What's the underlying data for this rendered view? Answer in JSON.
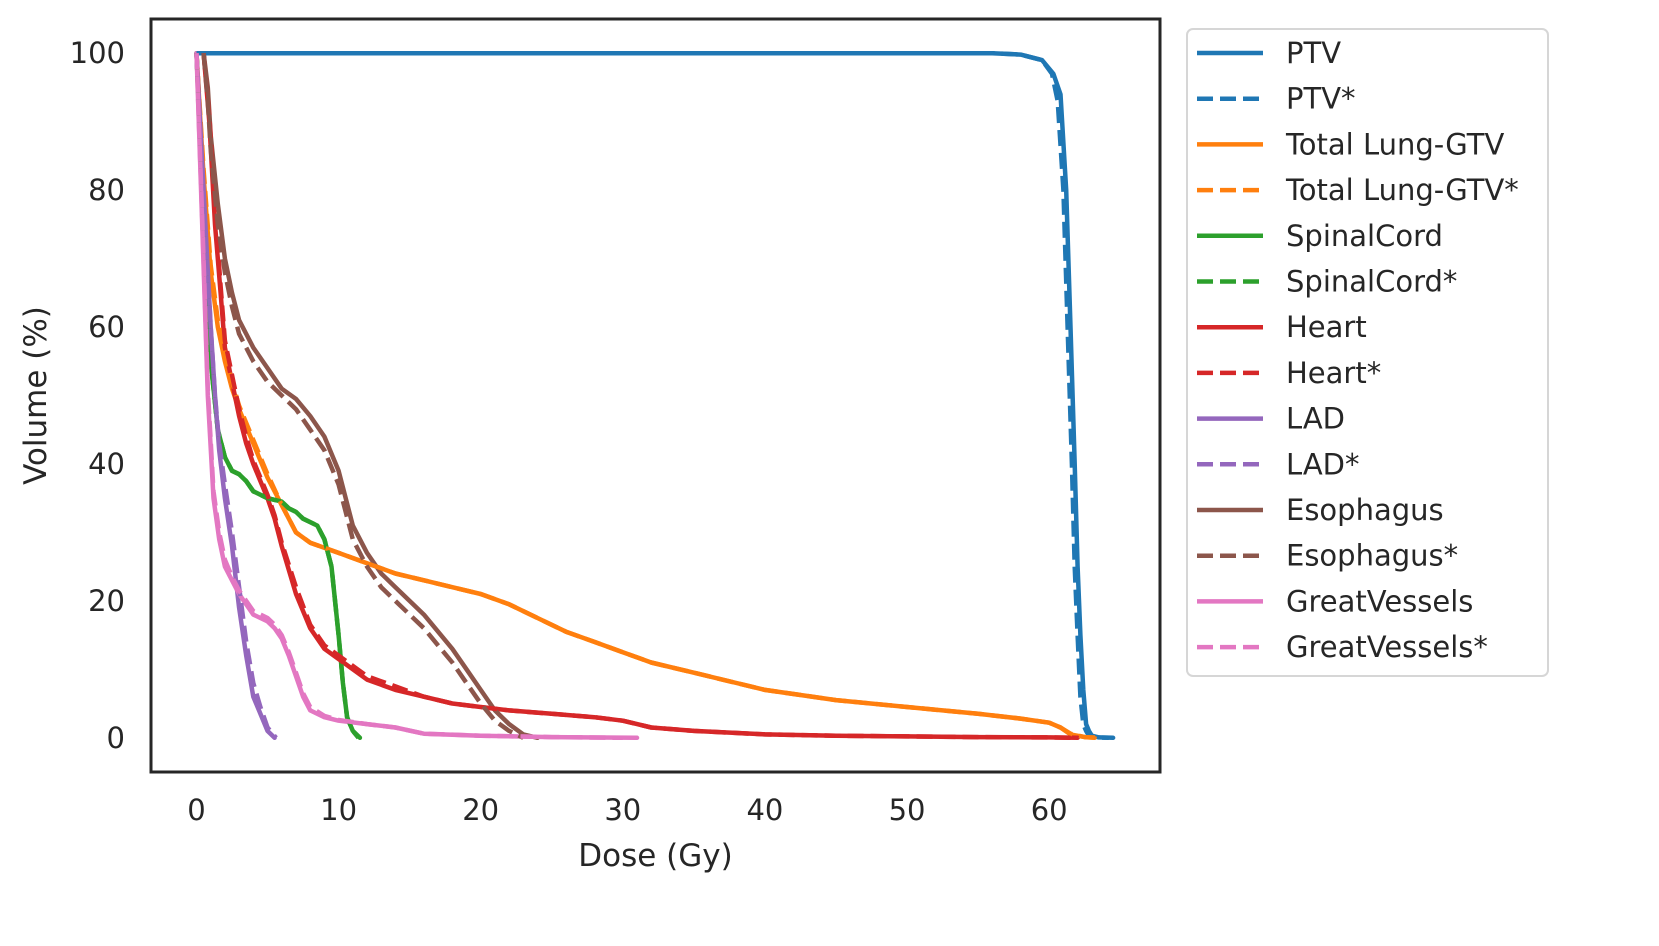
{
  "chart_data": {
    "type": "line",
    "title": "",
    "xlabel": "Dose (Gy)",
    "ylabel": "Volume (%)",
    "xlim": [
      -3.2,
      67.8
    ],
    "ylim": [
      -5,
      105
    ],
    "xticks": [
      0,
      10,
      20,
      30,
      40,
      50,
      60
    ],
    "yticks": [
      0,
      20,
      40,
      60,
      80,
      100
    ],
    "grid": false,
    "legend": "outside-right",
    "series": [
      {
        "name": "PTV",
        "color": "#1f77b4",
        "dash": "solid",
        "x": [
          0,
          10,
          20,
          30,
          40,
          50,
          56,
          58,
          59.5,
          60.3,
          60.8,
          61.2,
          61.5,
          61.8,
          62.0,
          62.2,
          62.4,
          62.6,
          62.8,
          63.0,
          63.5,
          64.5
        ],
        "y": [
          100,
          100,
          100,
          100,
          100,
          100,
          100,
          99.8,
          99,
          97,
          94,
          80,
          60,
          40,
          25,
          15,
          7,
          2,
          1,
          0.3,
          0.05,
          0
        ]
      },
      {
        "name": "PTV*",
        "color": "#1f77b4",
        "dash": "dashed",
        "x": [
          0,
          10,
          20,
          30,
          40,
          50,
          56,
          58,
          59.5,
          60.2,
          60.6,
          61.0,
          61.3,
          61.6,
          61.8,
          62.0,
          62.2,
          62.4,
          62.6,
          62.8,
          63.3,
          64.2
        ],
        "y": [
          100,
          100,
          100,
          100,
          100,
          100,
          100,
          99.8,
          99,
          97,
          93,
          80,
          60,
          40,
          25,
          15,
          6,
          2,
          1,
          0.3,
          0.05,
          0
        ]
      },
      {
        "name": "Total Lung-GTV",
        "color": "#ff7f0e",
        "dash": "solid",
        "x": [
          0,
          0.5,
          1.0,
          1.5,
          2,
          2.5,
          3,
          4,
          5,
          6,
          7,
          8,
          10,
          12,
          14,
          16,
          18,
          20,
          22,
          24,
          26,
          28,
          30,
          32,
          35,
          38,
          40,
          45,
          50,
          55,
          58,
          60,
          60.8,
          61.5,
          62.5,
          63.2
        ],
        "y": [
          100,
          82,
          68,
          60,
          55,
          51,
          48,
          43,
          38,
          34,
          30,
          28.5,
          27,
          25.5,
          24,
          23,
          22,
          21,
          19.5,
          17.5,
          15.5,
          14,
          12.5,
          11,
          9.5,
          8,
          7,
          5.5,
          4.5,
          3.5,
          2.8,
          2.2,
          1.5,
          0.5,
          0.1,
          0
        ]
      },
      {
        "name": "Total Lung-GTV*",
        "color": "#ff7f0e",
        "dash": "dashed",
        "x": [
          0,
          0.5,
          1.0,
          1.5,
          2,
          2.5,
          3,
          4,
          5,
          6,
          7,
          8,
          10,
          12,
          14,
          16,
          18,
          20,
          22,
          24,
          26,
          28,
          30,
          32,
          35,
          38,
          40,
          45,
          50,
          55,
          58,
          60,
          60.8,
          61.5,
          62.5,
          63.6
        ],
        "y": [
          100,
          83,
          69,
          61,
          56,
          52,
          48.5,
          43.5,
          38.5,
          34,
          30,
          28.5,
          27,
          25.5,
          24,
          23,
          22,
          21,
          19.5,
          17.5,
          15.5,
          14,
          12.5,
          11,
          9.5,
          8,
          7,
          5.5,
          4.5,
          3.5,
          2.8,
          2.2,
          1.5,
          0.6,
          0.1,
          0
        ]
      },
      {
        "name": "SpinalCord",
        "color": "#2ca02c",
        "dash": "solid",
        "x": [
          0,
          0.5,
          1.0,
          1.5,
          2.0,
          2.5,
          3.0,
          3.5,
          4.0,
          5.0,
          6.0,
          6.5,
          7.0,
          7.5,
          8.0,
          8.5,
          9.0,
          9.5,
          10.0,
          10.3,
          10.6,
          11.0,
          11.5
        ],
        "y": [
          100,
          75,
          55,
          45,
          41,
          39,
          38.5,
          37.5,
          36,
          35,
          34.5,
          33.5,
          33,
          32,
          31.5,
          31,
          29,
          25,
          15,
          8,
          3,
          1,
          0
        ]
      },
      {
        "name": "SpinalCord*",
        "color": "#2ca02c",
        "dash": "dashed",
        "x": [
          0,
          0.5,
          1.0,
          1.5,
          2.0,
          2.5,
          3.0,
          3.5,
          4.0,
          5.0,
          6.0,
          6.5,
          7.0,
          7.5,
          8.0,
          8.5,
          9.0,
          9.5,
          10.0,
          10.3,
          10.6,
          11.0,
          11.4
        ],
        "y": [
          100,
          75,
          55,
          45,
          41,
          39,
          38.5,
          37.5,
          36,
          35,
          34.5,
          33.5,
          33,
          32,
          31.5,
          31,
          29,
          25,
          15,
          8,
          3,
          1,
          0
        ]
      },
      {
        "name": "Heart",
        "color": "#d62728",
        "dash": "solid",
        "x": [
          0.5,
          0.9,
          1.3,
          1.7,
          2.0,
          2.5,
          3.0,
          3.5,
          4.0,
          4.5,
          5.0,
          5.5,
          6.0,
          7.0,
          8.0,
          9.0,
          10.0,
          12.0,
          14.0,
          16.0,
          18.0,
          20.0,
          22.0,
          25.0,
          28.0,
          30.0,
          32.0,
          35.0,
          40.0,
          45.0,
          50.0,
          55.0,
          60.0,
          62.0
        ],
        "y": [
          100,
          90,
          75,
          65,
          57,
          52,
          47,
          43,
          40,
          37.5,
          35,
          32,
          28,
          21,
          16,
          13,
          11.5,
          8.5,
          7,
          6,
          5,
          4.5,
          4,
          3.5,
          3,
          2.5,
          1.5,
          1,
          0.5,
          0.3,
          0.2,
          0.1,
          0.05,
          0
        ]
      },
      {
        "name": "Heart*",
        "color": "#d62728",
        "dash": "dashed",
        "x": [
          0.5,
          0.9,
          1.3,
          1.7,
          2.0,
          2.5,
          3.0,
          3.5,
          4.0,
          4.5,
          5.0,
          5.5,
          6.0,
          7.0,
          8.0,
          9.0,
          10.0,
          12.0,
          14.0,
          16.0,
          18.0,
          20.0,
          22.0,
          25.0,
          28.0,
          30.0,
          32.0,
          35.0,
          40.0,
          45.0,
          50.0,
          55.0,
          60.0,
          62.0
        ],
        "y": [
          100,
          91,
          77,
          66,
          58,
          53,
          48,
          44,
          40.5,
          38,
          35.5,
          32.5,
          28.5,
          22,
          16.5,
          13.5,
          12,
          9,
          7.5,
          6,
          5,
          4.5,
          4,
          3.5,
          3,
          2.5,
          1.5,
          1,
          0.5,
          0.3,
          0.2,
          0.1,
          0.05,
          0
        ]
      },
      {
        "name": "LAD",
        "color": "#9467bd",
        "dash": "solid",
        "x": [
          0,
          0.5,
          1.0,
          1.3,
          1.6,
          2.0,
          2.5,
          3.0,
          3.5,
          4.0,
          4.5,
          5.0,
          5.5
        ],
        "y": [
          100,
          80,
          60,
          50,
          42,
          35,
          28,
          19,
          12,
          6,
          3.5,
          1,
          0
        ]
      },
      {
        "name": "LAD*",
        "color": "#9467bd",
        "dash": "dashed",
        "x": [
          0,
          0.5,
          1.0,
          1.3,
          1.6,
          2.0,
          2.5,
          3.0,
          3.5,
          4.0,
          4.5,
          5.0,
          5.6
        ],
        "y": [
          100,
          80,
          60,
          50,
          43,
          37,
          30,
          22,
          14,
          8,
          4.5,
          1.5,
          0
        ]
      },
      {
        "name": "Esophagus",
        "color": "#8c564b",
        "dash": "solid",
        "x": [
          0.5,
          0.8,
          1.0,
          1.5,
          2.0,
          2.5,
          3.0,
          3.5,
          4.0,
          5.0,
          6.0,
          7.0,
          8.0,
          9.0,
          10.0,
          11.0,
          12.0,
          13.0,
          14.0,
          15.0,
          16.0,
          17.0,
          18.0,
          19.0,
          20.0,
          21.0,
          22.0,
          23.0,
          24.0
        ],
        "y": [
          100,
          95,
          88,
          78,
          70,
          65,
          61,
          59,
          57,
          54,
          51,
          49.5,
          47,
          44,
          39,
          31,
          27,
          24,
          22,
          20,
          18,
          15.5,
          13,
          10,
          7,
          4,
          2,
          0.5,
          0
        ]
      },
      {
        "name": "Esophagus*",
        "color": "#8c564b",
        "dash": "dashed",
        "x": [
          0.5,
          0.8,
          1.0,
          1.5,
          2.0,
          2.5,
          3.0,
          3.5,
          4.0,
          5.0,
          6.0,
          7.0,
          8.0,
          9.0,
          10.0,
          11.0,
          12.0,
          13.0,
          14.0,
          15.0,
          16.0,
          17.0,
          18.0,
          19.0,
          20.0,
          21.0,
          22.0,
          23.0
        ],
        "y": [
          100,
          93,
          86,
          75,
          68,
          63,
          59,
          57,
          55,
          52,
          50,
          48,
          45,
          42,
          37,
          29,
          25,
          22,
          20,
          18,
          16,
          13.5,
          11,
          8,
          5,
          2.5,
          1,
          0
        ]
      },
      {
        "name": "GreatVessels",
        "color": "#e377c2",
        "dash": "solid",
        "x": [
          0,
          0.4,
          0.8,
          1.2,
          1.6,
          2.0,
          2.5,
          3.0,
          3.5,
          4.0,
          5.0,
          5.5,
          6.0,
          6.5,
          7.0,
          7.5,
          8.0,
          9.0,
          10.0,
          12.0,
          14.0,
          16.0,
          20.0,
          25.0,
          31.0
        ],
        "y": [
          100,
          75,
          50,
          35,
          29,
          25,
          23,
          21,
          19.5,
          18,
          17,
          16,
          14.5,
          12,
          9,
          6,
          4,
          3,
          2.5,
          2,
          1.5,
          0.6,
          0.3,
          0.1,
          0
        ]
      },
      {
        "name": "GreatVessels*",
        "color": "#e377c2",
        "dash": "dashed",
        "x": [
          0,
          0.4,
          0.8,
          1.2,
          1.6,
          2.0,
          2.5,
          3.0,
          3.5,
          4.0,
          5.0,
          5.5,
          6.0,
          6.5,
          7.0,
          7.5,
          8.0,
          9.0,
          10.0,
          12.0,
          14.0,
          16.0,
          20.0,
          25.0,
          30.0
        ],
        "y": [
          100,
          76,
          51,
          36,
          30,
          26,
          23.5,
          21.5,
          20,
          18.5,
          17.5,
          16.5,
          15,
          12.5,
          9.5,
          6.5,
          4.5,
          3.2,
          2.6,
          2,
          1.5,
          0.6,
          0.3,
          0.1,
          0
        ]
      }
    ]
  }
}
